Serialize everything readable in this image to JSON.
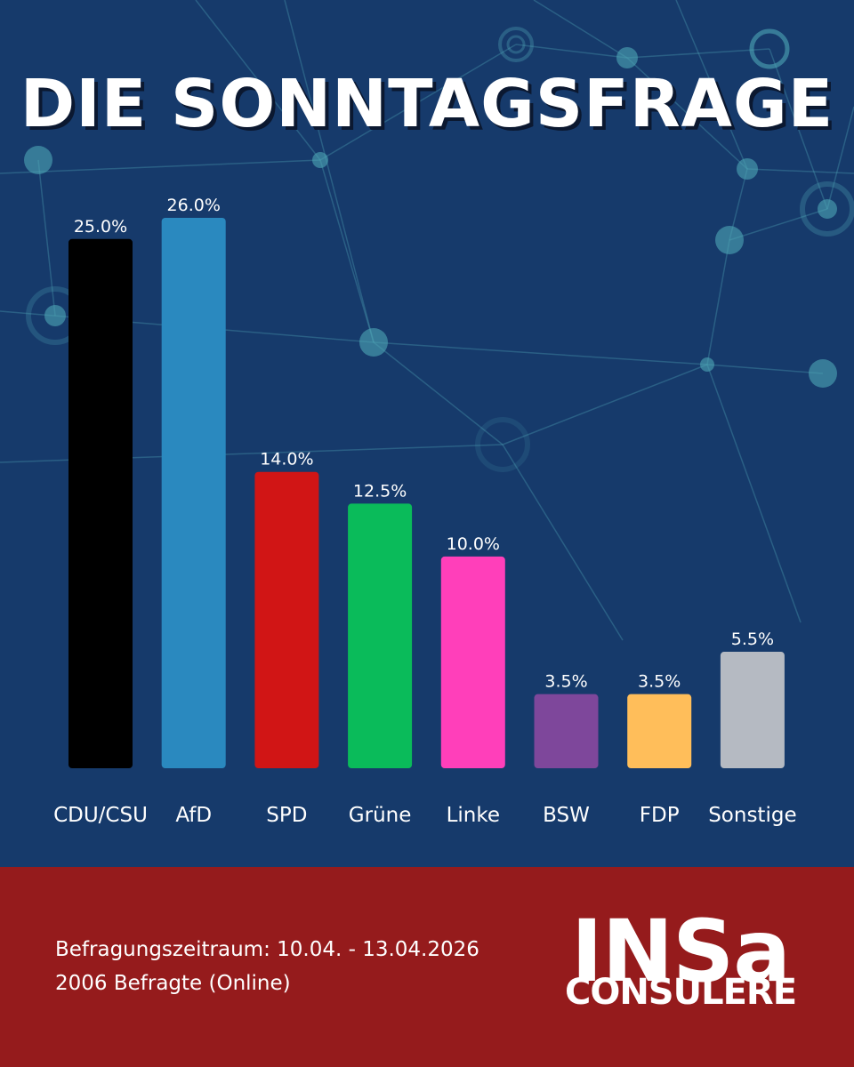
{
  "title": "DIE SONNTAGSFRAGE",
  "chart_data": {
    "type": "bar",
    "categories": [
      "CDU/CSU",
      "AfD",
      "SPD",
      "Grüne",
      "Linke",
      "BSW",
      "FDP",
      "Sonstige"
    ],
    "values": [
      25.0,
      26.0,
      14.0,
      12.5,
      10.0,
      3.5,
      3.5,
      5.5
    ],
    "value_labels": [
      "25.0%",
      "26.0%",
      "14.0%",
      "12.5%",
      "10.0%",
      "3.5%",
      "3.5%",
      "5.5%"
    ],
    "colors": [
      "#000000",
      "#2a89bf",
      "#d11515",
      "#0abb5a",
      "#ff3fba",
      "#7e479b",
      "#ffbe5a",
      "#b5bac2"
    ],
    "ylim": [
      0,
      26.0
    ],
    "grid": false,
    "legend": "none"
  },
  "footer": {
    "period": "Befragungszeitraum: 10.04. - 13.04.2026",
    "respondents": "2006 Befragte (Online)"
  },
  "logo": {
    "main": "INSa",
    "sub": "CONSULERE"
  },
  "colors": {
    "background": "#163a6b",
    "footer": "#951b1c",
    "network": "#4fa6b6"
  }
}
